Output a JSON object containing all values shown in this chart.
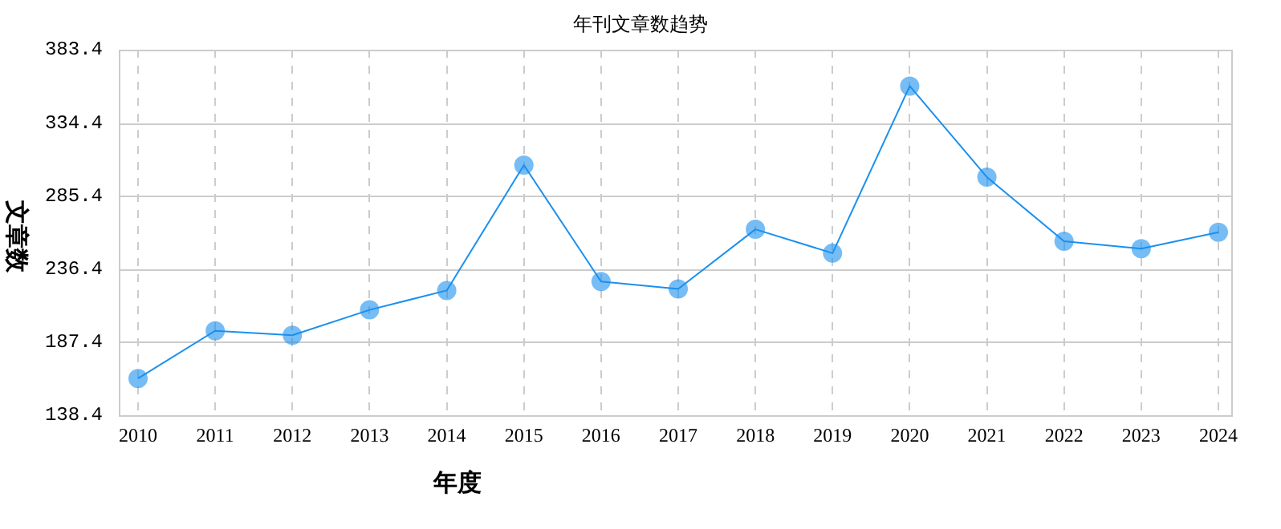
{
  "chart_data": {
    "type": "line",
    "title": "年刊文章数趋势",
    "xlabel": "年度",
    "ylabel": "文章数",
    "categories": [
      "2010",
      "2011",
      "2012",
      "2013",
      "2014",
      "2015",
      "2016",
      "2017",
      "2018",
      "2019",
      "2020",
      "2021",
      "2022",
      "2023",
      "2024"
    ],
    "series": [
      {
        "color": "#1a90ee",
        "values": [
          163,
          195,
          192,
          209,
          222,
          306,
          228,
          223,
          263,
          247,
          359,
          298,
          255,
          250,
          261
        ]
      }
    ],
    "ylim": [
      138.4,
      383.4
    ],
    "yticks": [
      138.4,
      187.4,
      236.4,
      285.4,
      334.4,
      383.4
    ],
    "grid": true,
    "legend": false,
    "marker": "circle",
    "line_style": "solid"
  }
}
